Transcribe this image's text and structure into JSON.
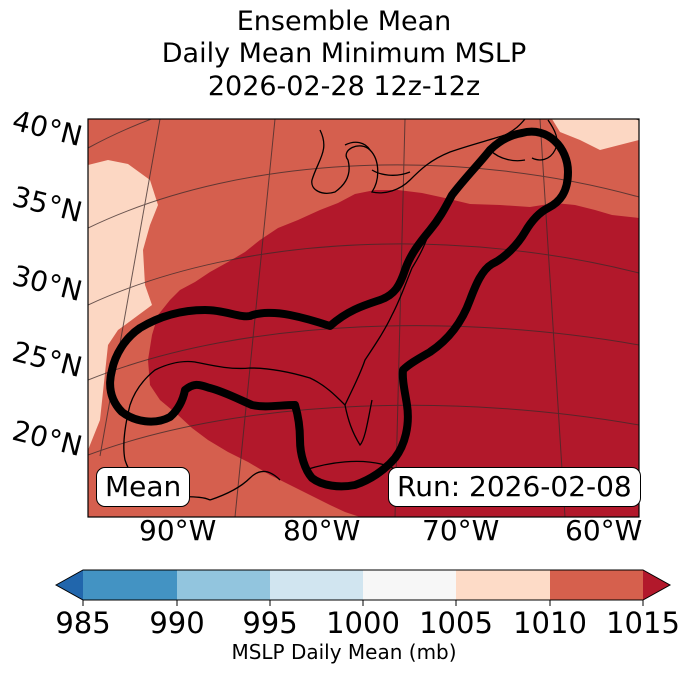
{
  "title": {
    "line1": "Ensemble Mean",
    "line2": "Daily Mean Minimum MSLP",
    "line3": "2026-02-28 12z-12z"
  },
  "map": {
    "latitude_labels": [
      "40°N",
      "35°N",
      "30°N",
      "25°N",
      "20°N"
    ],
    "longitude_labels": [
      "90°W",
      "80°W",
      "70°W",
      "60°W"
    ],
    "mean_label": "Mean",
    "run_label": "Run: 2026-02-08",
    "fill_colors": {
      "1005-1010": "#fcd7c3",
      "1010-1015": "#d55f4e",
      "1015+": "#b2182b"
    }
  },
  "colorbar": {
    "label": "MSLP Daily Mean (mb)",
    "ticks": [
      "985",
      "990",
      "995",
      "1000",
      "1005",
      "1010",
      "1015"
    ],
    "colors": [
      "#2166ac",
      "#4393c3",
      "#92c5de",
      "#d1e5f0",
      "#f7f7f7",
      "#fddbc7",
      "#d6604d",
      "#b2182b"
    ]
  }
}
